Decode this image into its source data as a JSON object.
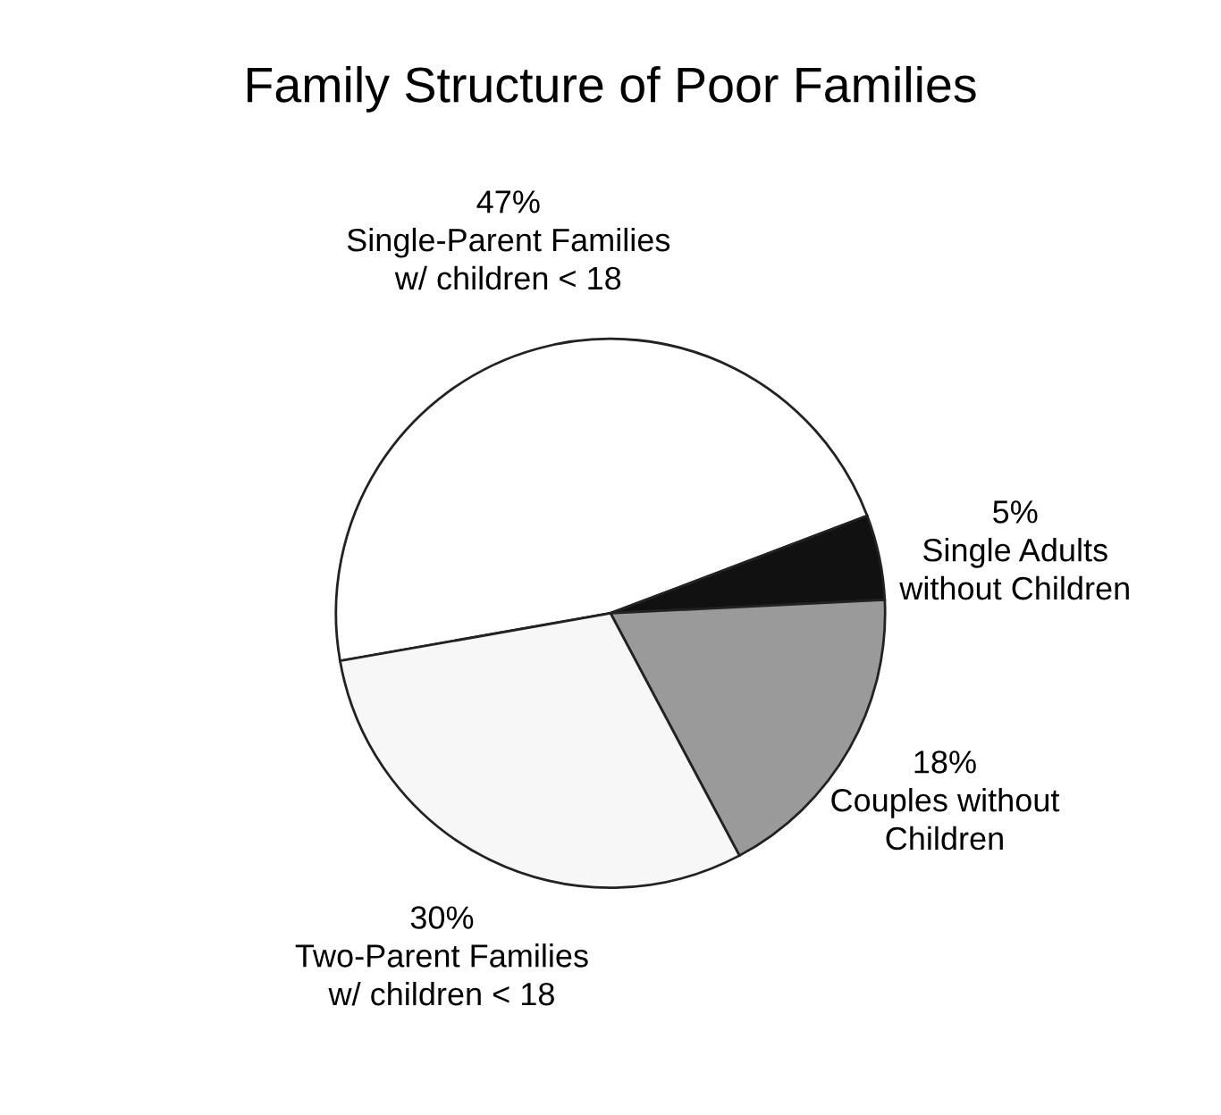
{
  "chart_data": {
    "type": "pie",
    "title": "Family Structure of Poor Families",
    "categories": [
      "Single-Parent Families\nw/ children < 18",
      "Single Adults\nwithout Children",
      "Couples without\nChildren",
      "Two-Parent Families\nw/ children < 18"
    ],
    "values": [
      47,
      5,
      18,
      30
    ],
    "value_labels": [
      "47%",
      "5%",
      "18%",
      "30%"
    ],
    "colors": [
      "#ffffff",
      "#111111",
      "#9a9a9a",
      "#f7f7f7"
    ]
  }
}
